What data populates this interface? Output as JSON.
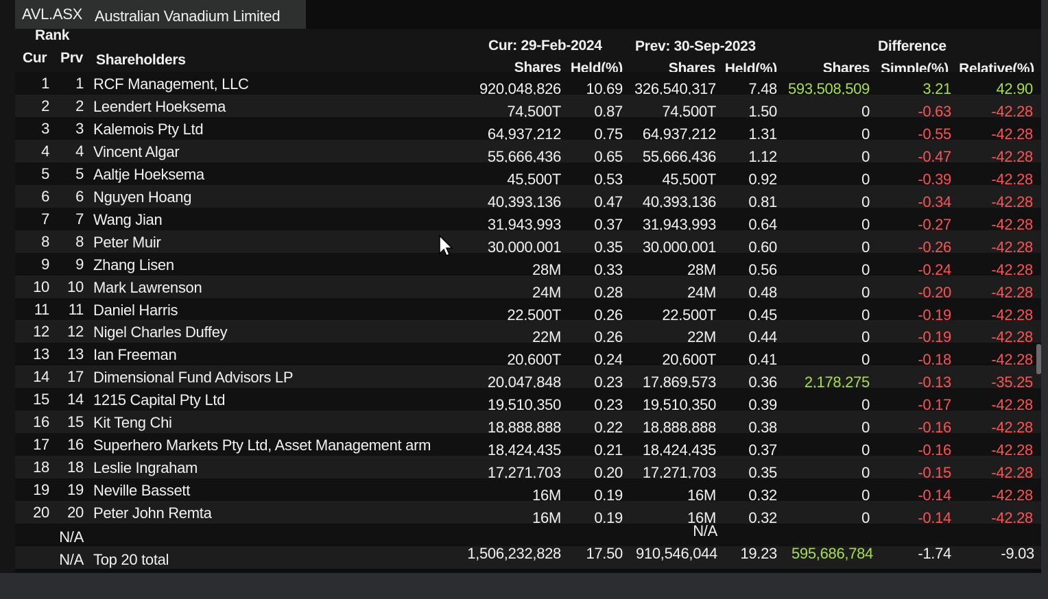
{
  "header": {
    "ticker": "AVL.ASX",
    "company": "Australian Vanadium Limited",
    "rank_label": "Rank",
    "cur_label": "Cur",
    "prv_label": "Prv",
    "shareholders_label": "Shareholders",
    "cur_period": "Cur: 29-Feb-2024",
    "prev_period": "Prev: 30-Sep-2023",
    "difference": "Difference",
    "shares": "Shares",
    "held": "Held(%)",
    "simple": "Simple(%)",
    "relative": "Relative(%)"
  },
  "rows": [
    {
      "cur": "1",
      "prv": "1",
      "name": "RCF Management, LLC",
      "cur_shares": "920,048,826",
      "cur_held": "10.69",
      "prev_shares": "326,540,317",
      "prev_held": "7.48",
      "diff_shares": "593,508,509",
      "simple": "3.21",
      "relative": "42.90"
    },
    {
      "cur": "2",
      "prv": "2",
      "name": "Leendert Hoeksema",
      "cur_shares": "74,500T",
      "cur_held": "0.87",
      "prev_shares": "74,500T",
      "prev_held": "1.50",
      "diff_shares": "0",
      "simple": "-0.63",
      "relative": "-42.28"
    },
    {
      "cur": "3",
      "prv": "3",
      "name": "Kalemois Pty Ltd",
      "cur_shares": "64,937,212",
      "cur_held": "0.75",
      "prev_shares": "64,937,212",
      "prev_held": "1.31",
      "diff_shares": "0",
      "simple": "-0.55",
      "relative": "-42.28"
    },
    {
      "cur": "4",
      "prv": "4",
      "name": "Vincent Algar",
      "cur_shares": "55,666,436",
      "cur_held": "0.65",
      "prev_shares": "55,666,436",
      "prev_held": "1.12",
      "diff_shares": "0",
      "simple": "-0.47",
      "relative": "-42.28"
    },
    {
      "cur": "5",
      "prv": "5",
      "name": "Aaltje Hoeksema",
      "cur_shares": "45,500T",
      "cur_held": "0.53",
      "prev_shares": "45,500T",
      "prev_held": "0.92",
      "diff_shares": "0",
      "simple": "-0.39",
      "relative": "-42.28"
    },
    {
      "cur": "6",
      "prv": "6",
      "name": "Nguyen Hoang",
      "cur_shares": "40,393,136",
      "cur_held": "0.47",
      "prev_shares": "40,393,136",
      "prev_held": "0.81",
      "diff_shares": "0",
      "simple": "-0.34",
      "relative": "-42.28"
    },
    {
      "cur": "7",
      "prv": "7",
      "name": "Wang Jian",
      "cur_shares": "31,943,993",
      "cur_held": "0.37",
      "prev_shares": "31,943,993",
      "prev_held": "0.64",
      "diff_shares": "0",
      "simple": "-0.27",
      "relative": "-42.28"
    },
    {
      "cur": "8",
      "prv": "8",
      "name": "Peter Muir",
      "cur_shares": "30,000,001",
      "cur_held": "0.35",
      "prev_shares": "30,000,001",
      "prev_held": "0.60",
      "diff_shares": "0",
      "simple": "-0.26",
      "relative": "-42.28"
    },
    {
      "cur": "9",
      "prv": "9",
      "name": "Zhang Lisen",
      "cur_shares": "28M",
      "cur_held": "0.33",
      "prev_shares": "28M",
      "prev_held": "0.56",
      "diff_shares": "0",
      "simple": "-0.24",
      "relative": "-42.28"
    },
    {
      "cur": "10",
      "prv": "10",
      "name": "Mark Lawrenson",
      "cur_shares": "24M",
      "cur_held": "0.28",
      "prev_shares": "24M",
      "prev_held": "0.48",
      "diff_shares": "0",
      "simple": "-0.20",
      "relative": "-42.28"
    },
    {
      "cur": "11",
      "prv": "11",
      "name": "Daniel Harris",
      "cur_shares": "22,500T",
      "cur_held": "0.26",
      "prev_shares": "22,500T",
      "prev_held": "0.45",
      "diff_shares": "0",
      "simple": "-0.19",
      "relative": "-42.28"
    },
    {
      "cur": "12",
      "prv": "12",
      "name": "Nigel Charles Duffey",
      "cur_shares": "22M",
      "cur_held": "0.26",
      "prev_shares": "22M",
      "prev_held": "0.44",
      "diff_shares": "0",
      "simple": "-0.19",
      "relative": "-42.28"
    },
    {
      "cur": "13",
      "prv": "13",
      "name": "Ian Freeman",
      "cur_shares": "20,600T",
      "cur_held": "0.24",
      "prev_shares": "20,600T",
      "prev_held": "0.41",
      "diff_shares": "0",
      "simple": "-0.18",
      "relative": "-42.28"
    },
    {
      "cur": "14",
      "prv": "17",
      "name": "Dimensional Fund Advisors LP",
      "cur_shares": "20,047,848",
      "cur_held": "0.23",
      "prev_shares": "17,869,573",
      "prev_held": "0.36",
      "diff_shares": "2,178,275",
      "simple": "-0.13",
      "relative": "-35.25"
    },
    {
      "cur": "15",
      "prv": "14",
      "name": "1215 Capital Pty Ltd",
      "cur_shares": "19,510,350",
      "cur_held": "0.23",
      "prev_shares": "19,510,350",
      "prev_held": "0.39",
      "diff_shares": "0",
      "simple": "-0.17",
      "relative": "-42.28"
    },
    {
      "cur": "16",
      "prv": "15",
      "name": "Kit Teng Chi",
      "cur_shares": "18,888,888",
      "cur_held": "0.22",
      "prev_shares": "18,888,888",
      "prev_held": "0.38",
      "diff_shares": "0",
      "simple": "-0.16",
      "relative": "-42.28"
    },
    {
      "cur": "17",
      "prv": "16",
      "name": "Superhero Markets Pty Ltd, Asset Management arm",
      "cur_shares": "18,424,435",
      "cur_held": "0.21",
      "prev_shares": "18,424,435",
      "prev_held": "0.37",
      "diff_shares": "0",
      "simple": "-0.16",
      "relative": "-42.28"
    },
    {
      "cur": "18",
      "prv": "18",
      "name": "Leslie Ingraham",
      "cur_shares": "17,271,703",
      "cur_held": "0.20",
      "prev_shares": "17,271,703",
      "prev_held": "0.35",
      "diff_shares": "0",
      "simple": "-0.15",
      "relative": "-42.28"
    },
    {
      "cur": "19",
      "prv": "19",
      "name": "Neville Bassett",
      "cur_shares": "16M",
      "cur_held": "0.19",
      "prev_shares": "16M",
      "prev_held": "0.32",
      "diff_shares": "0",
      "simple": "-0.14",
      "relative": "-42.28"
    },
    {
      "cur": "20",
      "prv": "20",
      "name": "Peter John Remta",
      "cur_shares": "16M",
      "cur_held": "0.19",
      "prev_shares": "16M",
      "prev_held": "0.32",
      "diff_shares": "0",
      "simple": "-0.14",
      "relative": "-42.28"
    }
  ],
  "na_row": {
    "prv": "N/A",
    "prev_shares": "N/A"
  },
  "total_row": {
    "prv": "N/A",
    "name": "Top 20 total",
    "cur_shares": "1,506,232,828",
    "cur_held": "17.50",
    "prev_shares": "910,546,044",
    "prev_held": "19.23",
    "diff_shares": "595,686,784",
    "simple": "-1.74",
    "relative": "-9.03"
  },
  "colors": {
    "positive": "#a9df4a",
    "negative": "#ff5252",
    "text": "#f2f2f2",
    "background": "#0c0d0c"
  }
}
